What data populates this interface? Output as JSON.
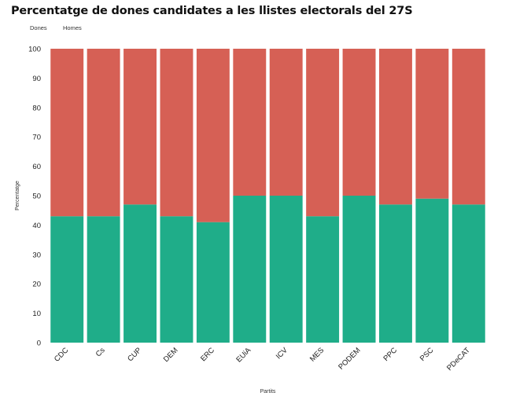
{
  "chart_data": {
    "type": "bar",
    "stacked": true,
    "title": "Percentatge de dones candidates a les llistes electorals del 27S",
    "xlabel": "Partits",
    "ylabel": "Percentatge",
    "ylim": [
      0,
      100
    ],
    "yticks": [
      "0",
      "10",
      "20",
      "30",
      "40",
      "50",
      "60",
      "70",
      "80",
      "90",
      "100"
    ],
    "categories": [
      "CDC",
      "Cs",
      "CUP",
      "DEM",
      "ERC",
      "EUiA",
      "ICV",
      "MES",
      "PODEM",
      "PPC",
      "PSC",
      "PDeCAT"
    ],
    "series": [
      {
        "name": "Dones",
        "color": "#1fad89",
        "values": [
          43,
          43,
          47,
          43,
          41,
          50,
          50,
          43,
          50,
          47,
          49,
          47
        ]
      },
      {
        "name": "Homes",
        "color": "#d66055",
        "values": [
          57,
          57,
          53,
          57,
          59,
          50,
          50,
          57,
          50,
          53,
          51,
          53
        ]
      }
    ],
    "grid": false,
    "legend_position": "top-left"
  }
}
